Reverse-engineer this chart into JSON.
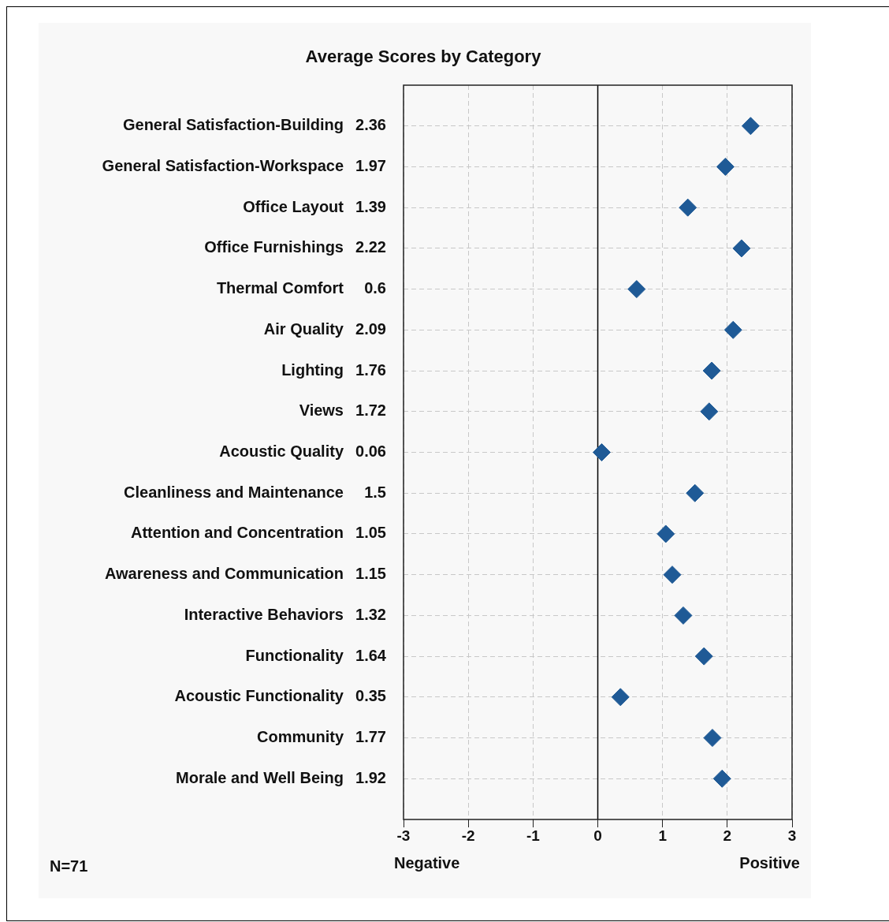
{
  "chart_data": {
    "type": "scatter",
    "orientation": "horizontal",
    "title": "Average Scores by Category",
    "categories": [
      "General Satisfaction-Building",
      "General Satisfaction-Workspace",
      "Office Layout",
      "Office Furnishings",
      "Thermal Comfort",
      "Air Quality",
      "Lighting",
      "Views",
      "Acoustic Quality",
      "Cleanliness and Maintenance",
      "Attention and Concentration",
      "Awareness and Communication",
      "Interactive Behaviors",
      "Functionality",
      "Acoustic Functionality",
      "Community",
      "Morale and Well Being"
    ],
    "values": [
      2.36,
      1.97,
      1.39,
      2.22,
      0.6,
      2.09,
      1.76,
      1.72,
      0.06,
      1.5,
      1.05,
      1.15,
      1.32,
      1.64,
      0.35,
      1.77,
      1.92
    ],
    "color": "#1f5a96",
    "marker": "diamond",
    "data_labels": true,
    "xlim": [
      -3,
      3
    ],
    "xticks": [
      -3,
      -2,
      -1,
      0,
      1,
      2,
      3
    ],
    "grid": true,
    "legend": false,
    "ref_lines": [
      {
        "axis": "x",
        "value": 0,
        "color": "#000000"
      }
    ],
    "annotations": [
      "Negative",
      "Positive",
      "N=71"
    ]
  }
}
